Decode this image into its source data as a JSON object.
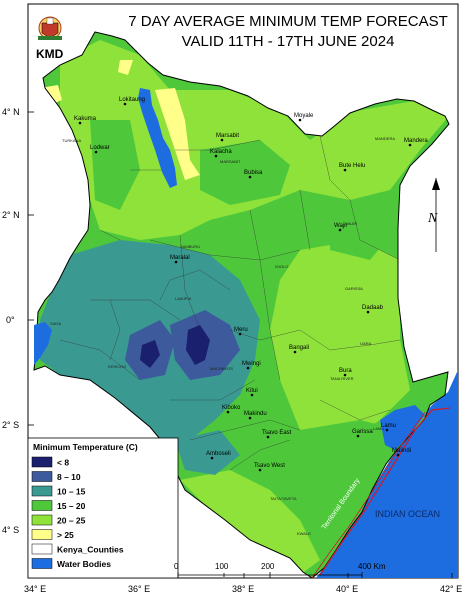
{
  "title": {
    "line1": "7 DAY AVERAGE MINIMUM TEMP FORECAST",
    "line2": "VALID 11TH - 17TH JUNE  2024"
  },
  "agency": "KMD",
  "axes": {
    "x_ticks": [
      "34° E",
      "36° E",
      "38° E",
      "40° E",
      "42° E"
    ],
    "y_ticks": [
      "4° N",
      "2° N",
      "0°",
      "2° S",
      "4° S"
    ]
  },
  "colors": {
    "lt8": "#1a1f6e",
    "8_10": "#3c5a9c",
    "10_15": "#3a9a92",
    "15_20": "#4ec83a",
    "20_25": "#8fe23a",
    "gt25": "#ffff8a",
    "water": "#1d6de0"
  },
  "legend": {
    "title": "Minimum Temperature (C)",
    "items": [
      {
        "label": "< 8",
        "color": "#1a1f6e"
      },
      {
        "label": "8 – 10",
        "color": "#3c5a9c"
      },
      {
        "label": "10 – 15",
        "color": "#3a9a92"
      },
      {
        "label": "15 – 20",
        "color": "#4ec83a"
      },
      {
        "label": "20 – 25",
        "color": "#8fe23a"
      },
      {
        "label": "> 25",
        "color": "#ffff8a"
      },
      {
        "label": "Kenya_Counties",
        "color": "#ffffff"
      },
      {
        "label": "Water Bodies",
        "color": "#1d6de0"
      }
    ]
  },
  "scale": {
    "ticks": [
      "0",
      "100",
      "200",
      "400 Km"
    ]
  },
  "labels": {
    "ocean": "INDIAN OCEAN",
    "boundary": "Territorial Boundary",
    "north": "N"
  },
  "towns": [
    {
      "name": "Lokitaung"
    },
    {
      "name": "Kakuma"
    },
    {
      "name": "Lodwar"
    },
    {
      "name": "Kalacha"
    },
    {
      "name": "Bubisa"
    },
    {
      "name": "Bute Helu"
    },
    {
      "name": "Marsabit"
    },
    {
      "name": "Moyale"
    },
    {
      "name": "Mandera"
    },
    {
      "name": "Wajir"
    },
    {
      "name": "Maralal"
    },
    {
      "name": "Dadaab"
    },
    {
      "name": "Meru"
    },
    {
      "name": "Mwingi"
    },
    {
      "name": "Bangali"
    },
    {
      "name": "Bura"
    },
    {
      "name": "Kitui"
    },
    {
      "name": "Makindu"
    },
    {
      "name": "Kiboko"
    },
    {
      "name": "Tsavo East"
    },
    {
      "name": "Amboseli"
    },
    {
      "name": "Garissa"
    },
    {
      "name": "Tsavo West"
    },
    {
      "name": "Lamu"
    },
    {
      "name": "Malindi"
    }
  ]
}
